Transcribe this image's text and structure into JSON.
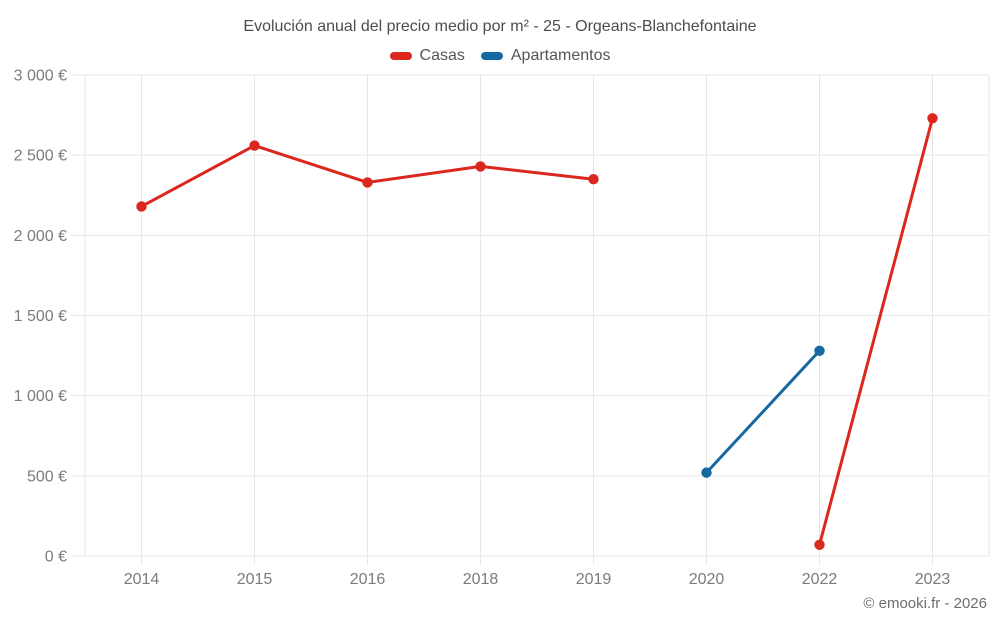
{
  "page": {
    "background": "#ffffff"
  },
  "chart_data": {
    "type": "line",
    "title": "Evolución anual del precio medio por m² - 25 - Orgeans-Blanchefontaine",
    "categories": [
      "2014",
      "2015",
      "2016",
      "2018",
      "2019",
      "2020",
      "2022",
      "2023"
    ],
    "series": [
      {
        "name": "Casas",
        "color": "#db281e",
        "values": [
          2180,
          2560,
          2330,
          2430,
          2350,
          null,
          70,
          2730
        ]
      },
      {
        "name": "Apartamentos",
        "color": "#1568a0",
        "values": [
          null,
          null,
          null,
          null,
          null,
          520,
          1280,
          null
        ]
      }
    ],
    "xlabel": "",
    "ylabel": "",
    "ylim": [
      0,
      3000
    ],
    "y_ticks": [
      {
        "value": 0,
        "label": "0 €"
      },
      {
        "value": 500,
        "label": "500 €"
      },
      {
        "value": 1000,
        "label": "1 000 €"
      },
      {
        "value": 1500,
        "label": "1 500 €"
      },
      {
        "value": 2000,
        "label": "2 000 €"
      },
      {
        "value": 2500,
        "label": "2 500 €"
      },
      {
        "value": 3000,
        "label": "3 000 €"
      }
    ],
    "grid": true,
    "legend_position": "top",
    "grid_color": "#e7e7e7",
    "tick_color": "#7b7b7b",
    "title_color": "#4d4d4d",
    "attribution": "© emooki.fr - 2026"
  }
}
